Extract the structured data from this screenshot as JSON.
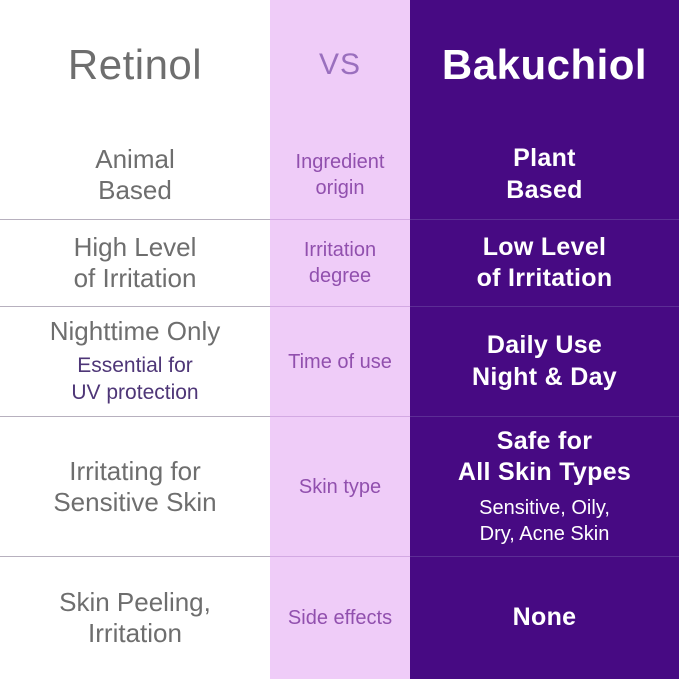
{
  "header": {
    "left_title": "Retinol",
    "vs_label": "VS",
    "right_title": "Bakuchiol"
  },
  "colors": {
    "retinol_bg": "#ffffff",
    "retinol_text": "#6e6e6e",
    "retinol_note": "#4e3677",
    "vs_bg": "#efccf8",
    "vs_text": "#9150ae",
    "vs_accent": "#9a6fbe",
    "bakuchiol_bg": "#470a83",
    "bakuchiol_text": "#ffffff",
    "divider_left": "#b7b0be",
    "divider_mid": "#d3a9e3",
    "divider_right": "#5c2d95"
  },
  "rows": [
    {
      "attribute": "Ingredient\norigin",
      "retinol": "Animal\nBased",
      "bakuchiol": "Plant\nBased"
    },
    {
      "attribute": "Irritation\ndegree",
      "retinol": "High Level\nof Irritation",
      "bakuchiol": "Low Level\nof Irritation"
    },
    {
      "attribute": "Time of use",
      "retinol": "Nighttime Only",
      "retinol_note": "Essential for\nUV protection",
      "bakuchiol": "Daily Use\nNight & Day"
    },
    {
      "attribute": "Skin type",
      "retinol": "Irritating for\nSensitive Skin",
      "bakuchiol": "Safe for\nAll Skin Types",
      "bakuchiol_note": "Sensitive, Oily,\nDry, Acne Skin"
    },
    {
      "attribute": "Side effects",
      "retinol": "Skin Peeling,\nIrritation",
      "bakuchiol": "None"
    }
  ]
}
